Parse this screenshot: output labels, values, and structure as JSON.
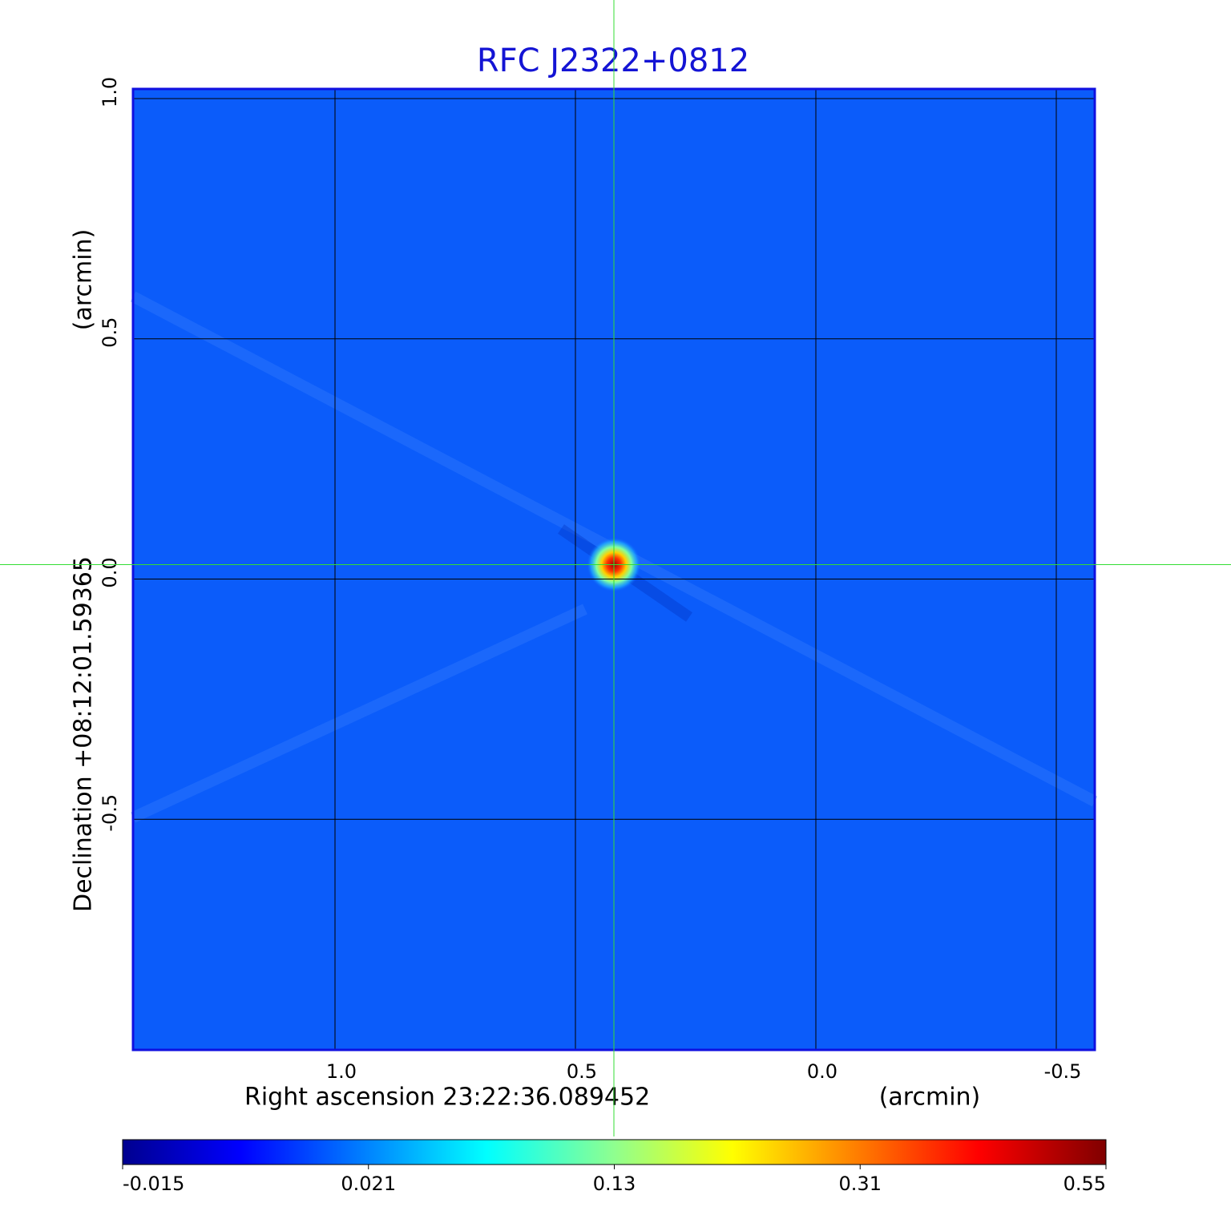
{
  "chart_data": {
    "type": "image",
    "title": "RFC J2322+0812",
    "x_label": "Right ascension  23:22:36.089452",
    "x_unit": "(arcmin)",
    "y_label": "Declination  +08:12:01.59365",
    "y_unit": "(arcmin)",
    "xlim": [
      1.42,
      -0.58
    ],
    "ylim": [
      -0.98,
      1.02
    ],
    "xticks": [
      {
        "value": 1.0,
        "label": "1.0"
      },
      {
        "value": 0.5,
        "label": "0.5"
      },
      {
        "value": 0.0,
        "label": "0.0"
      },
      {
        "value": -0.5,
        "label": "-0.5"
      }
    ],
    "yticks": [
      {
        "value": 1.0,
        "label": "1.0"
      },
      {
        "value": 0.5,
        "label": "0.5"
      },
      {
        "value": 0.0,
        "label": "0.0"
      },
      {
        "value": -0.5,
        "label": "-0.5"
      }
    ],
    "grid": true,
    "background_color": "#0b5cfa",
    "colorbar_ticks": [
      -0.015,
      0.021,
      0.13,
      0.31,
      0.55
    ],
    "crosshair": {
      "x": 0.42,
      "y": 0.03,
      "color": "#33dd33"
    },
    "sources": [
      {
        "x": 0.42,
        "y": 0.03,
        "peak": 0.55
      }
    ]
  }
}
